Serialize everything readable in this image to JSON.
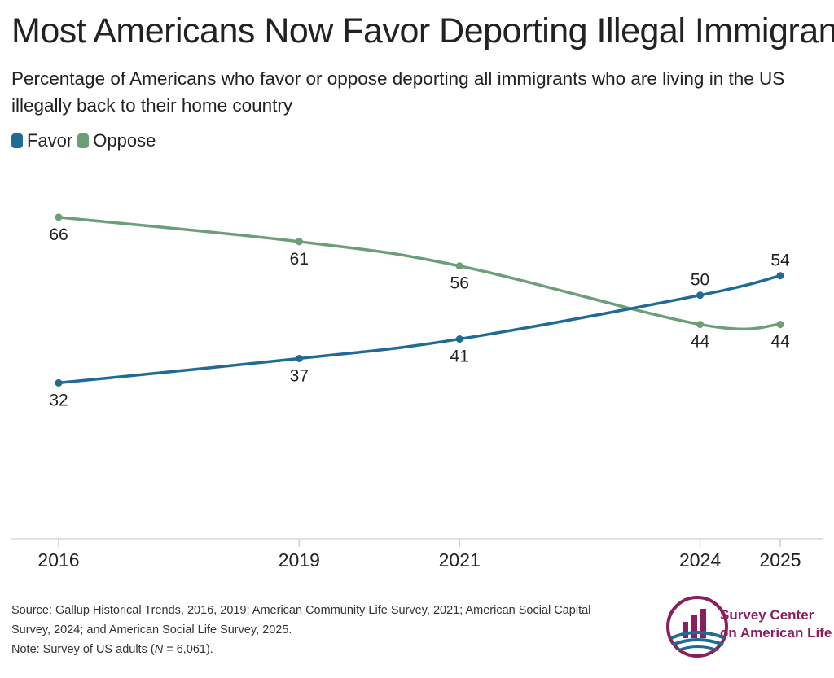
{
  "title": "Most Americans Now Favor Deporting Illegal Immigrants",
  "subtitle": "Percentage of Americans who favor or oppose deporting all immigrants who are living in the US illegally back to their home country",
  "legend": {
    "favor": {
      "label": "Favor",
      "color": "#1f6a96"
    },
    "oppose": {
      "label": "Oppose",
      "color": "#6c9e78"
    }
  },
  "chart_data": {
    "type": "line",
    "x": [
      2016,
      2019,
      2021,
      2024,
      2025
    ],
    "series": [
      {
        "name": "Favor",
        "values": [
          32,
          37,
          41,
          50,
          54
        ],
        "color": "#1f6a96"
      },
      {
        "name": "Oppose",
        "values": [
          66,
          61,
          56,
          44,
          44
        ],
        "color": "#6c9e78"
      }
    ],
    "xlim": [
      2016,
      2025
    ],
    "ylim": [
      0,
      75
    ],
    "grid": false,
    "legend_position": "top-left"
  },
  "footer": {
    "source_line1": "Source: Gallup Historical Trends, 2016, 2019; American Community Life Survey, 2021; American Social Capital",
    "source_line2": "Survey, 2024; and American Social Life Survey, 2025.",
    "note_prefix": "Note: Survey of US adults (",
    "note_n": "N",
    "note_suffix": " = 6,061)."
  },
  "logo": {
    "line1": "Survey Center",
    "line2": "on American Life",
    "color": "#8a1f5c",
    "accent": "#1f6a96"
  }
}
